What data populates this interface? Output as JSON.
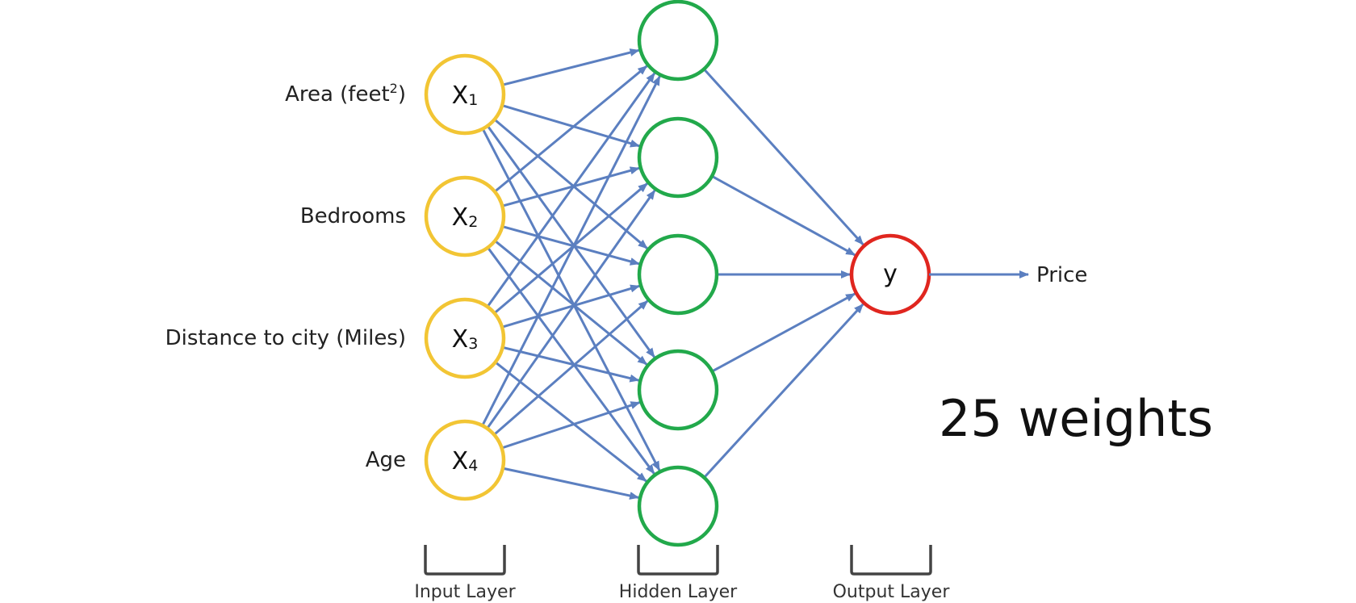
{
  "input_layer": {
    "label": "Input Layer",
    "color": "#f2c534",
    "nodes": [
      {
        "symbol": "X",
        "subscript": "1",
        "feature": "Area (feet",
        "feature_sup": "2",
        "feature_end": ")"
      },
      {
        "symbol": "X",
        "subscript": "2",
        "feature": "Bedrooms",
        "feature_sup": "",
        "feature_end": ""
      },
      {
        "symbol": "X",
        "subscript": "3",
        "feature": "Distance to city (Miles)",
        "feature_sup": "",
        "feature_end": ""
      },
      {
        "symbol": "X",
        "subscript": "4",
        "feature": "Age",
        "feature_sup": "",
        "feature_end": ""
      }
    ]
  },
  "hidden_layer": {
    "label": "Hidden Layer",
    "color": "#22a94b",
    "node_count": 5
  },
  "output_layer": {
    "label": "Output Layer",
    "color": "#e0261f",
    "node": "y",
    "output_name": "Price"
  },
  "connection_color": "#5b7fc0",
  "caption": "25 weights"
}
